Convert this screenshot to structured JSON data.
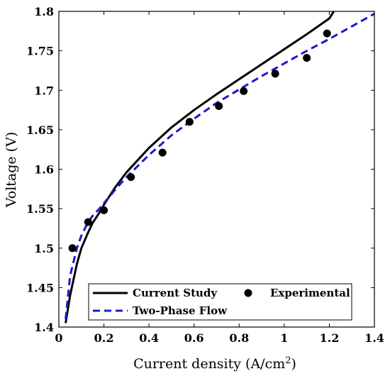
{
  "chart_data": {
    "type": "line",
    "title": "",
    "xlabel": "Current density (A/cm",
    "xlabel_superscript": "2",
    "xlabel_suffix": ")",
    "ylabel": "Voltage (V)",
    "xlim": [
      0,
      1.4
    ],
    "ylim": [
      1.4,
      1.8
    ],
    "x_ticks": [
      0,
      0.2,
      0.4,
      0.6,
      0.8,
      1.0,
      1.2,
      1.4
    ],
    "x_tick_labels": [
      "0",
      "0.2",
      "0.4",
      "0.6",
      "0.8",
      "1",
      "1.2",
      "1.4"
    ],
    "y_ticks": [
      1.4,
      1.45,
      1.5,
      1.55,
      1.6,
      1.65,
      1.7,
      1.75,
      1.8
    ],
    "y_tick_labels": [
      "1.4",
      "1.45",
      "1.5",
      "1.55",
      "1.6",
      "1.65",
      "1.7",
      "1.75",
      "1.8"
    ],
    "grid": false,
    "legend_position": "bottom",
    "series": [
      {
        "name": "Current Study",
        "style": "solid",
        "color": "#000000",
        "x": [
          0.03,
          0.05,
          0.08,
          0.1,
          0.13,
          0.15,
          0.18,
          0.2,
          0.25,
          0.3,
          0.4,
          0.5,
          0.6,
          0.7,
          0.8,
          0.9,
          1.0,
          1.1,
          1.2,
          1.22
        ],
        "y": [
          1.405,
          1.44,
          1.48,
          1.5,
          1.52,
          1.532,
          1.545,
          1.555,
          1.577,
          1.596,
          1.627,
          1.653,
          1.675,
          1.695,
          1.714,
          1.733,
          1.752,
          1.771,
          1.791,
          1.8
        ]
      },
      {
        "name": "Two-Phase Flow",
        "style": "dashed",
        "color": "#1a1acc",
        "x": [
          0.03,
          0.05,
          0.08,
          0.1,
          0.13,
          0.15,
          0.18,
          0.2,
          0.25,
          0.3,
          0.4,
          0.5,
          0.6,
          0.7,
          0.8,
          0.9,
          1.0,
          1.1,
          1.2,
          1.3,
          1.4
        ],
        "y": [
          1.41,
          1.465,
          1.5,
          1.516,
          1.533,
          1.541,
          1.55,
          1.557,
          1.574,
          1.59,
          1.618,
          1.643,
          1.664,
          1.684,
          1.701,
          1.718,
          1.734,
          1.75,
          1.765,
          1.781,
          1.797
        ]
      },
      {
        "name": "Experimental",
        "style": "markers",
        "color": "#000000",
        "x": [
          0.06,
          0.13,
          0.2,
          0.32,
          0.46,
          0.58,
          0.71,
          0.82,
          0.96,
          1.1,
          1.19
        ],
        "y": [
          1.5,
          1.533,
          1.548,
          1.59,
          1.621,
          1.66,
          1.68,
          1.699,
          1.721,
          1.741,
          1.772
        ]
      }
    ]
  }
}
